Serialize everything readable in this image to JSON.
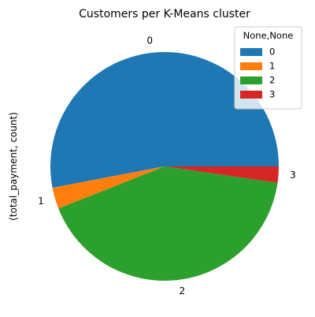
{
  "chart_data": {
    "type": "pie",
    "title": "Customers per K-Means cluster",
    "ylabel": "(total_payment, count)",
    "categories": [
      "0",
      "1",
      "2",
      "3"
    ],
    "values": [
      53.0,
      3.0,
      41.7,
      2.3
    ],
    "colors": [
      "#1f77b4",
      "#ff7f0e",
      "#2ca02c",
      "#d62728"
    ],
    "legend": {
      "title": "None,None",
      "entries": [
        "0",
        "1",
        "2",
        "3"
      ],
      "placement": "top-right"
    },
    "start_angle_deg": 0,
    "direction": "counterclockwise"
  }
}
